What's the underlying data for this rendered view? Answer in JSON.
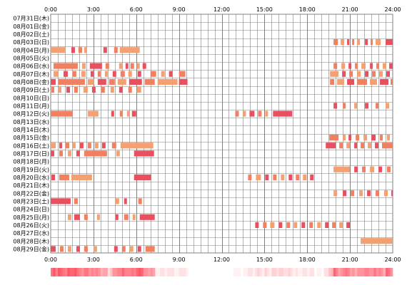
{
  "chart_data": {
    "type": "timeline",
    "x_unit": "hour of day",
    "xlim": [
      0,
      24
    ],
    "grid": true,
    "x_ticks": [
      {
        "value": 0,
        "label": "0:00"
      },
      {
        "value": 3,
        "label": "3:00"
      },
      {
        "value": 6,
        "label": "6:00"
      },
      {
        "value": 9,
        "label": "9:00"
      },
      {
        "value": 12,
        "label": "12:00"
      },
      {
        "value": 15,
        "label": "15:00"
      },
      {
        "value": 18,
        "label": "18:00"
      },
      {
        "value": 21,
        "label": "21:00"
      },
      {
        "value": 24,
        "label": "24:00"
      }
    ],
    "colors": {
      "bar_primary": "#f08060",
      "bar_secondary": "#f5a070",
      "bar_accent": "#e85060",
      "grid": "#808080",
      "text": "#000000"
    },
    "rows": [
      {
        "label": "07月31日(木)",
        "segments": []
      },
      {
        "label": "08月01日(金)",
        "segments": []
      },
      {
        "label": "08月02日(土)",
        "segments": []
      },
      {
        "label": "08月03日(日)",
        "segments": [
          [
            19.85,
            20.15
          ],
          [
            20.35,
            20.6
          ],
          [
            20.8,
            20.95
          ],
          [
            21.15,
            21.3
          ],
          [
            21.5,
            21.7
          ],
          [
            22.05,
            22.25
          ],
          [
            22.45,
            22.6
          ],
          [
            22.8,
            23.15
          ],
          [
            23.5,
            24.0
          ]
        ]
      },
      {
        "label": "08月04日(月)",
        "segments": [
          [
            0.0,
            1.0
          ],
          [
            1.45,
            1.7
          ],
          [
            1.95,
            2.2
          ],
          [
            2.35,
            2.55
          ],
          [
            3.7,
            3.95
          ],
          [
            4.45,
            4.7
          ],
          [
            4.85,
            6.25
          ]
        ]
      },
      {
        "label": "08月05日(火)",
        "segments": []
      },
      {
        "label": "08月06日(水)",
        "segments": [
          [
            0.2,
            1.9
          ],
          [
            2.2,
            2.45
          ],
          [
            2.75,
            3.6
          ],
          [
            3.85,
            4.1
          ],
          [
            4.8,
            5.05
          ],
          [
            5.25,
            5.45
          ],
          [
            5.6,
            5.85
          ],
          [
            6.05,
            6.25
          ],
          [
            6.45,
            6.7
          ],
          [
            19.85,
            20.1
          ],
          [
            20.4,
            20.65
          ],
          [
            20.9,
            21.1
          ],
          [
            21.35,
            21.55
          ],
          [
            21.8,
            22.1
          ],
          [
            22.4,
            22.6
          ],
          [
            22.85,
            23.05
          ],
          [
            23.3,
            23.55
          ],
          [
            23.75,
            24.0
          ]
        ]
      },
      {
        "label": "08月07日(木)",
        "segments": [
          [
            0.2,
            0.55
          ],
          [
            0.9,
            1.2
          ],
          [
            1.55,
            1.8
          ],
          [
            2.15,
            2.45
          ],
          [
            2.8,
            3.0
          ],
          [
            3.3,
            3.5
          ],
          [
            3.8,
            4.0
          ],
          [
            4.35,
            4.6
          ],
          [
            4.9,
            5.2
          ],
          [
            5.45,
            5.7
          ],
          [
            6.1,
            6.35
          ],
          [
            7.0,
            7.4
          ],
          [
            7.75,
            8.0
          ],
          [
            8.3,
            8.55
          ],
          [
            9.0,
            9.45
          ],
          [
            19.6,
            20.2
          ],
          [
            20.45,
            20.7
          ],
          [
            20.95,
            21.2
          ],
          [
            21.5,
            21.75
          ],
          [
            22.05,
            22.3
          ],
          [
            22.55,
            22.8
          ],
          [
            23.05,
            23.3
          ],
          [
            23.55,
            23.8
          ]
        ]
      },
      {
        "label": "08月08日(金)",
        "segments": [
          [
            0.0,
            0.35
          ],
          [
            0.55,
            2.4
          ],
          [
            2.6,
            3.05
          ],
          [
            3.3,
            3.9
          ],
          [
            4.1,
            4.5
          ],
          [
            4.7,
            5.3
          ],
          [
            5.5,
            6.4
          ],
          [
            6.6,
            7.3
          ],
          [
            7.5,
            8.9
          ],
          [
            9.0,
            9.6
          ],
          [
            19.6,
            19.9
          ],
          [
            20.1,
            20.6
          ],
          [
            20.8,
            21.3
          ],
          [
            21.5,
            22.2
          ],
          [
            22.4,
            22.9
          ],
          [
            23.1,
            23.7
          ],
          [
            23.85,
            24.0
          ]
        ]
      },
      {
        "label": "08月09日(土)",
        "segments": [
          [
            0.05,
            0.25
          ],
          [
            0.55,
            0.75
          ],
          [
            1.1,
            1.35
          ],
          [
            1.65,
            1.9
          ],
          [
            2.3,
            2.6
          ],
          [
            2.9,
            3.15
          ],
          [
            3.55,
            3.8
          ],
          [
            4.2,
            4.45
          ],
          [
            4.8,
            5.05
          ],
          [
            5.45,
            5.7
          ],
          [
            6.05,
            6.35
          ]
        ]
      },
      {
        "label": "08月10日(日)",
        "segments": []
      },
      {
        "label": "08月11日(月)",
        "segments": [
          [
            19.85,
            20.1
          ],
          [
            20.5,
            20.7
          ],
          [
            21.3,
            21.5
          ],
          [
            22.05,
            22.3
          ],
          [
            22.8,
            23.0
          ],
          [
            23.5,
            23.75
          ]
        ]
      },
      {
        "label": "08月12日(火)",
        "segments": [
          [
            0.0,
            1.55
          ],
          [
            2.6,
            3.35
          ],
          [
            4.25,
            4.45
          ],
          [
            4.85,
            5.05
          ],
          [
            5.35,
            5.55
          ],
          [
            5.7,
            6.0
          ],
          [
            12.95,
            13.2
          ],
          [
            13.5,
            13.7
          ],
          [
            13.95,
            14.3
          ],
          [
            14.55,
            14.8
          ],
          [
            15.05,
            15.25
          ],
          [
            15.6,
            16.95
          ]
        ]
      },
      {
        "label": "08月13日(水)",
        "segments": []
      },
      {
        "label": "08月14日(木)",
        "segments": []
      },
      {
        "label": "08月15日(金)",
        "segments": [
          [
            19.55,
            20.2
          ],
          [
            20.5,
            20.7
          ],
          [
            20.9,
            21.1
          ],
          [
            21.4,
            21.65
          ],
          [
            21.95,
            22.2
          ],
          [
            22.5,
            22.8
          ],
          [
            23.1,
            23.3
          ],
          [
            23.6,
            23.8
          ]
        ]
      },
      {
        "label": "08月16日(土)",
        "segments": [
          [
            0.0,
            0.35
          ],
          [
            0.6,
            0.8
          ],
          [
            1.05,
            1.3
          ],
          [
            1.55,
            1.75
          ],
          [
            2.05,
            2.3
          ],
          [
            2.6,
            2.85
          ],
          [
            3.1,
            3.35
          ],
          [
            3.6,
            3.85
          ],
          [
            4.3,
            4.6
          ],
          [
            4.9,
            7.2
          ],
          [
            19.3,
            20.0
          ],
          [
            20.25,
            20.5
          ],
          [
            20.75,
            21.0
          ],
          [
            21.3,
            21.5
          ],
          [
            21.75,
            22.0
          ],
          [
            22.25,
            22.5
          ],
          [
            22.75,
            23.0
          ],
          [
            23.25,
            24.0
          ]
        ]
      },
      {
        "label": "08月17日(日)",
        "segments": [
          [
            0.0,
            0.25
          ],
          [
            0.6,
            0.85
          ],
          [
            1.2,
            1.45
          ],
          [
            1.8,
            2.05
          ],
          [
            2.35,
            3.95
          ],
          [
            4.6,
            4.85
          ],
          [
            5.85,
            7.25
          ]
        ]
      },
      {
        "label": "08月18日(月)",
        "segments": []
      },
      {
        "label": "08月19日(火)",
        "segments": [
          [
            19.85,
            21.0
          ],
          [
            21.3,
            21.55
          ],
          [
            21.85,
            22.1
          ],
          [
            22.4,
            22.7
          ],
          [
            23.0,
            23.25
          ],
          [
            23.6,
            23.85
          ]
        ]
      },
      {
        "label": "08月20日(水)",
        "segments": [
          [
            0.05,
            0.3
          ],
          [
            0.6,
            1.3
          ],
          [
            1.45,
            2.9
          ],
          [
            5.85,
            7.05
          ],
          [
            13.85,
            14.1
          ],
          [
            14.4,
            14.75
          ],
          [
            15.05,
            15.3
          ],
          [
            15.6,
            15.85
          ],
          [
            16.15,
            16.4
          ],
          [
            16.7,
            16.95
          ],
          [
            17.2,
            17.45
          ],
          [
            17.7,
            17.95
          ],
          [
            18.2,
            18.45
          ]
        ]
      },
      {
        "label": "08月21日(木)",
        "segments": []
      },
      {
        "label": "08月22日(金)",
        "segments": [
          [
            19.85,
            20.1
          ],
          [
            20.5,
            20.75
          ],
          [
            21.05,
            21.3
          ],
          [
            21.65,
            21.9
          ],
          [
            22.2,
            22.45
          ],
          [
            22.8,
            23.05
          ],
          [
            23.4,
            23.65
          ],
          [
            23.9,
            24.0
          ]
        ]
      },
      {
        "label": "08月23日(土)",
        "segments": [
          [
            0.0,
            1.4
          ],
          [
            1.65,
            1.9
          ],
          [
            4.55,
            4.8
          ],
          [
            5.15,
            5.35
          ],
          [
            6.15,
            6.4
          ]
        ]
      },
      {
        "label": "08月24日(日)",
        "segments": []
      },
      {
        "label": "08月25日(月)",
        "segments": [
          [
            1.2,
            1.45
          ],
          [
            1.65,
            2.05
          ],
          [
            2.35,
            2.6
          ],
          [
            3.25,
            3.45
          ],
          [
            4.55,
            4.75
          ],
          [
            5.15,
            5.45
          ],
          [
            5.75,
            5.95
          ],
          [
            6.25,
            7.3
          ]
        ]
      },
      {
        "label": "08月26日(火)",
        "segments": [
          [
            14.35,
            14.6
          ],
          [
            14.9,
            15.15
          ],
          [
            15.4,
            15.7
          ],
          [
            16.0,
            16.25
          ],
          [
            16.55,
            16.8
          ],
          [
            17.05,
            17.3
          ],
          [
            17.6,
            17.85
          ],
          [
            18.15,
            18.4
          ],
          [
            18.7,
            18.95
          ],
          [
            19.25,
            19.5
          ],
          [
            19.75,
            20.0
          ],
          [
            20.25,
            20.5
          ],
          [
            20.75,
            21.0
          ]
        ]
      },
      {
        "label": "08月27日(水)",
        "segments": []
      },
      {
        "label": "08月28日(木)",
        "segments": [
          [
            21.75,
            24.0
          ]
        ]
      },
      {
        "label": "08月29日(金)",
        "segments": [
          [
            0.0,
            0.35
          ],
          [
            0.65,
            0.9
          ],
          [
            1.2,
            1.45
          ],
          [
            1.8,
            2.05
          ],
          [
            2.35,
            2.6
          ],
          [
            3.0,
            3.25
          ],
          [
            4.45,
            4.7
          ],
          [
            5.0,
            5.25
          ],
          [
            5.55,
            5.8
          ],
          [
            6.1,
            6.35
          ],
          [
            6.65,
            7.3
          ]
        ]
      }
    ]
  }
}
